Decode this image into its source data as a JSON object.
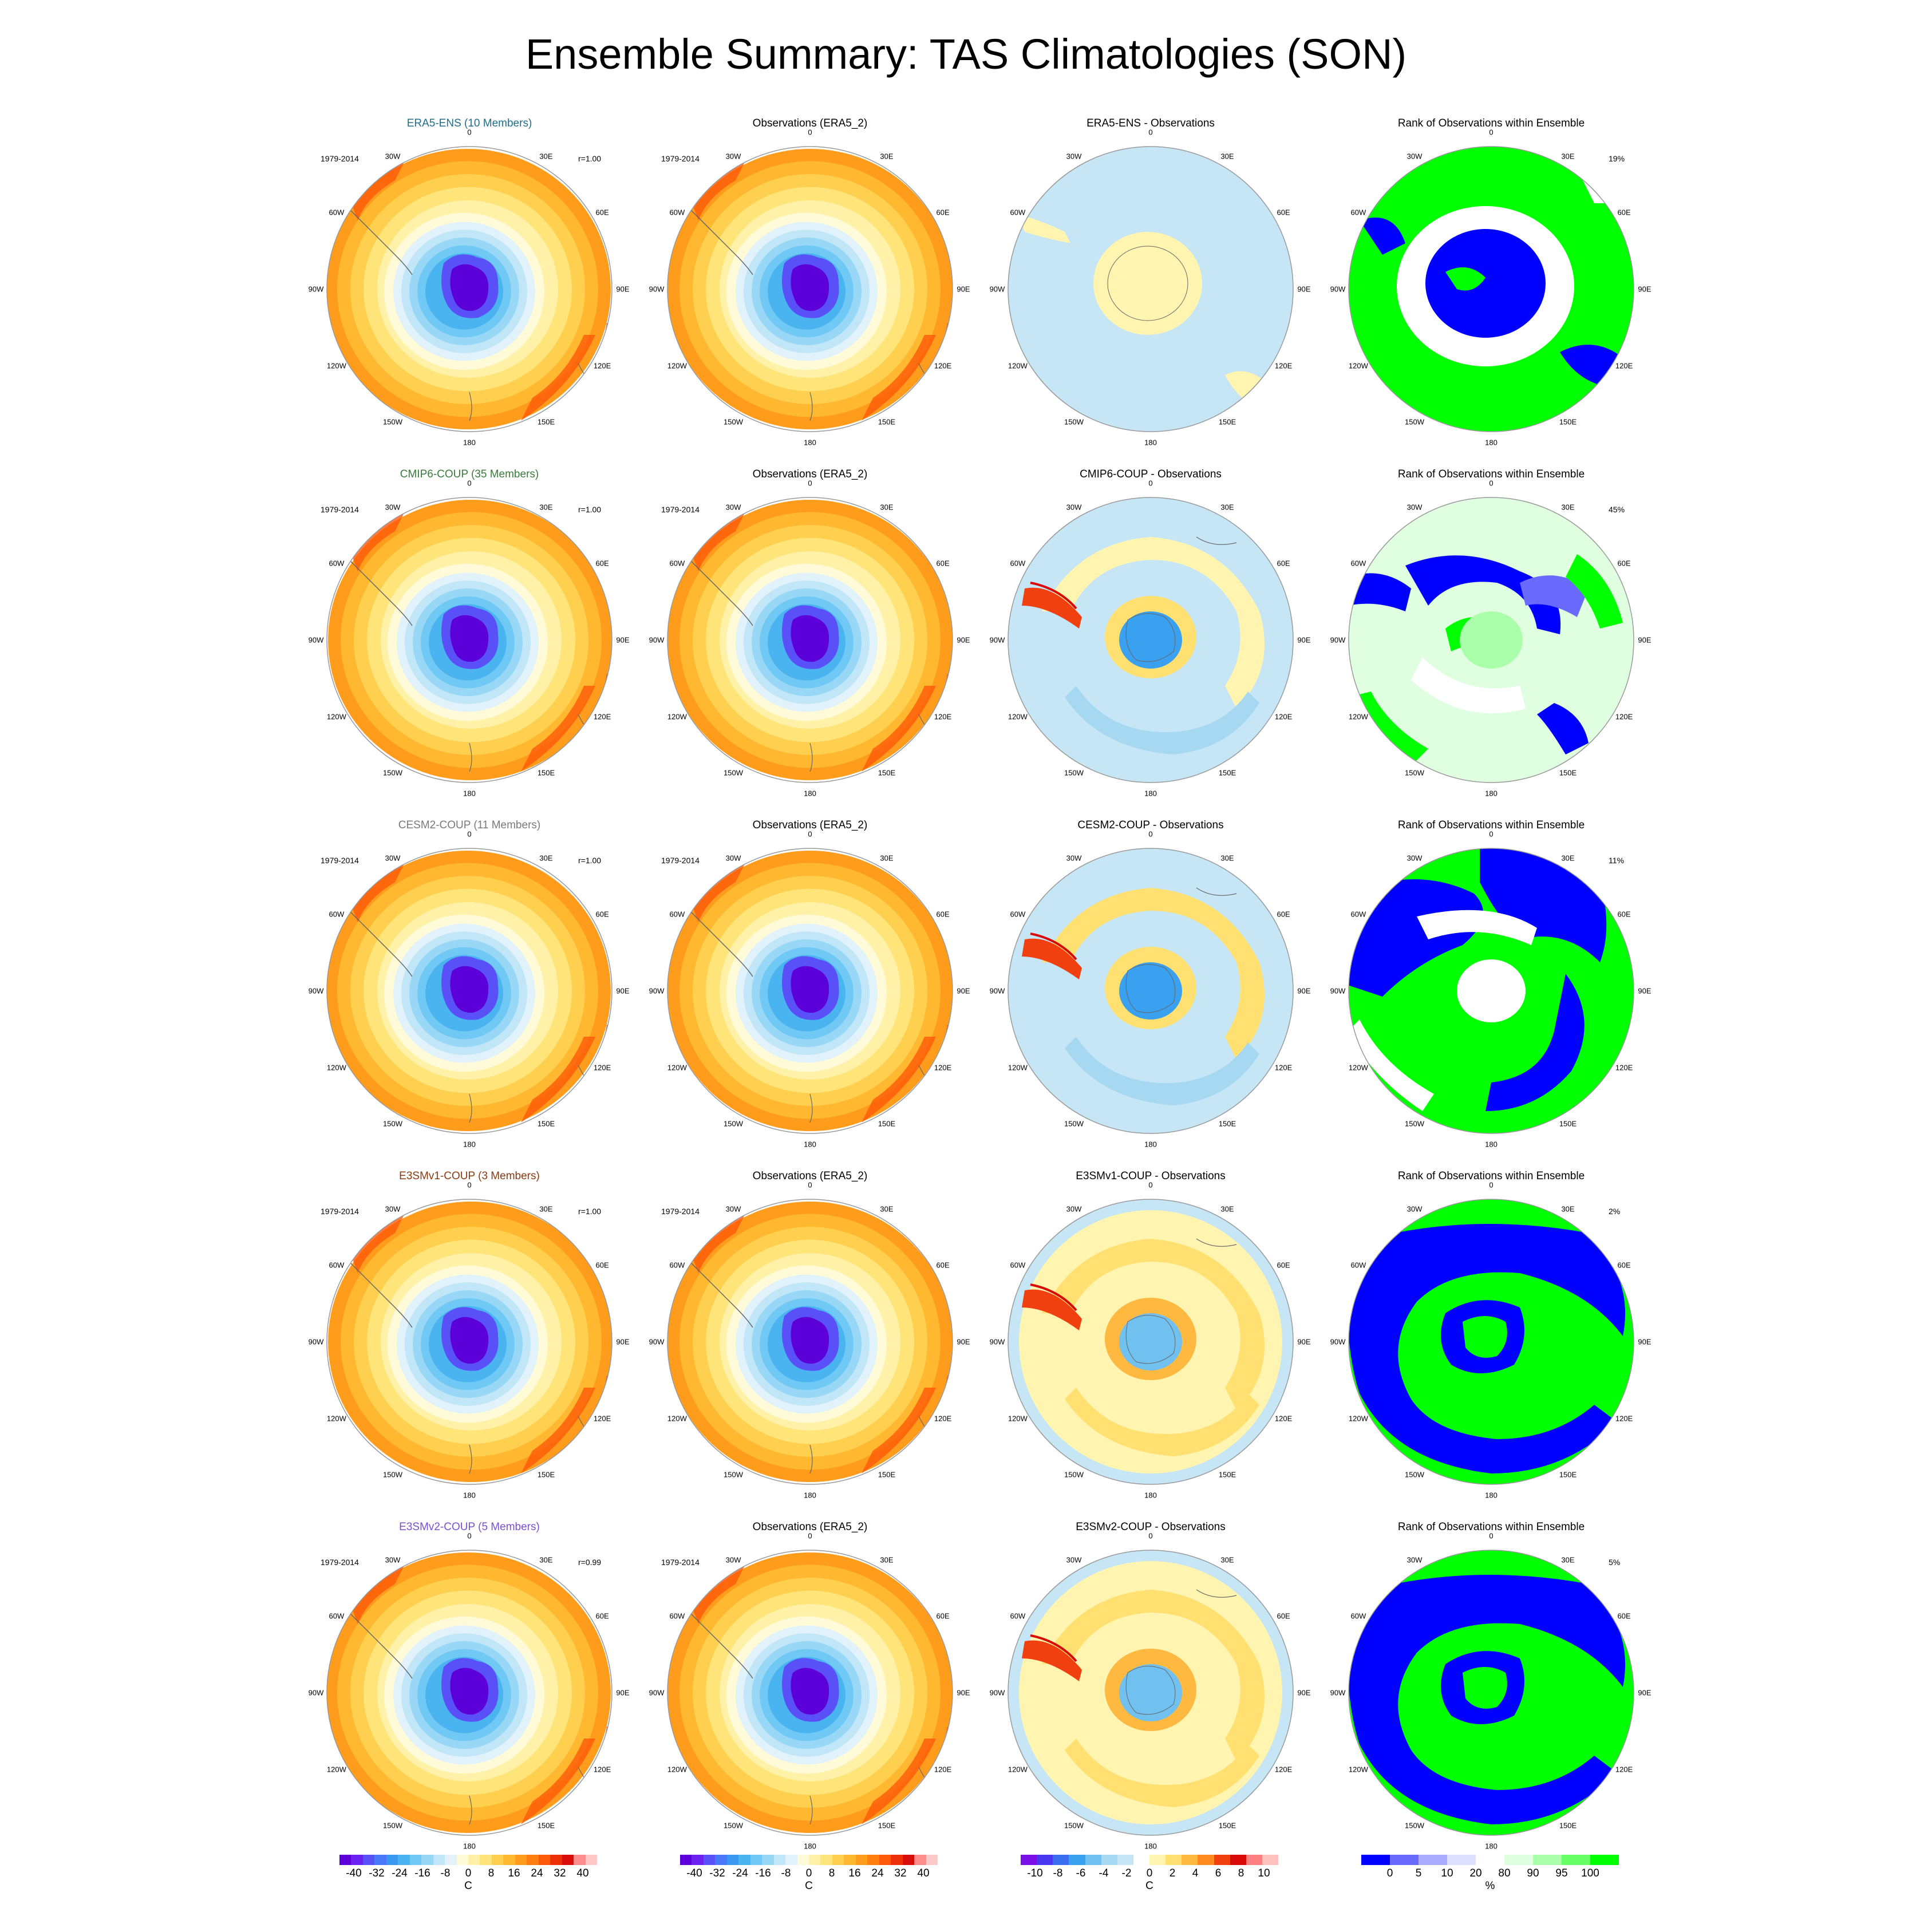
{
  "title": "Ensemble Summary: TAS Climatologies (SON)",
  "period_label": "1979-2014",
  "lon_labels": [
    "0",
    "30E",
    "60E",
    "90E",
    "120E",
    "150E",
    "180",
    "150W",
    "120W",
    "90W",
    "60W",
    "30W"
  ],
  "rows": [
    {
      "model_title": "ERA5-ENS (10 Members)",
      "model_color": "#1f6e8c",
      "r_label": "r=1.00",
      "obs_title": "Observations (ERA5_2)",
      "diff_title": "ERA5-ENS - Observations",
      "rank_title": "Rank of Observations within Ensemble",
      "rank_pct": "19%"
    },
    {
      "model_title": "CMIP6-COUP (35 Members)",
      "model_color": "#3a7a3a",
      "r_label": "r=1.00",
      "obs_title": "Observations (ERA5_2)",
      "diff_title": "CMIP6-COUP - Observations",
      "rank_title": "Rank of Observations within Ensemble",
      "rank_pct": "45%"
    },
    {
      "model_title": "CESM2-COUP (11 Members)",
      "model_color": "#7a7a7a",
      "r_label": "r=1.00",
      "obs_title": "Observations (ERA5_2)",
      "diff_title": "CESM2-COUP - Observations",
      "rank_title": "Rank of Observations within Ensemble",
      "rank_pct": "11%"
    },
    {
      "model_title": "E3SMv1-COUP (3 Members)",
      "model_color": "#8b3a10",
      "r_label": "r=1.00",
      "obs_title": "Observations (ERA5_2)",
      "diff_title": "E3SMv1-COUP - Observations",
      "rank_title": "Rank of Observations within Ensemble",
      "rank_pct": "2%"
    },
    {
      "model_title": "E3SMv2-COUP (5 Members)",
      "model_color": "#7b4fd6",
      "r_label": "r=0.99",
      "obs_title": "Observations (ERA5_2)",
      "diff_title": "E3SMv2-COUP - Observations",
      "rank_title": "Rank of Observations within Ensemble",
      "rank_pct": "5%"
    }
  ],
  "colorbars": [
    {
      "kind": "temp",
      "unit": "C",
      "ticks": [
        "-40",
        "-32",
        "-24",
        "-16",
        "-8",
        "0",
        "8",
        "16",
        "24",
        "32",
        "40"
      ],
      "colors": [
        "#5b00d8",
        "#6a22f0",
        "#5a50f8",
        "#4a78f8",
        "#3a98f0",
        "#4ab4f0",
        "#70c8f4",
        "#98d8f6",
        "#c0e6f8",
        "#e2f2fa",
        "#fffbd8",
        "#fff2a8",
        "#ffe47a",
        "#ffd050",
        "#ffb830",
        "#ff9c1c",
        "#ff7e10",
        "#ff5a0a",
        "#ee3008",
        "#d80c08",
        "#ff8c8c",
        "#ffc8c8"
      ]
    },
    {
      "kind": "temp",
      "unit": "C",
      "ticks": [
        "-40",
        "-32",
        "-24",
        "-16",
        "-8",
        "0",
        "8",
        "16",
        "24",
        "32",
        "40"
      ],
      "colors": [
        "#5b00d8",
        "#6a22f0",
        "#5a50f8",
        "#4a78f8",
        "#3a98f0",
        "#4ab4f0",
        "#70c8f4",
        "#98d8f6",
        "#c0e6f8",
        "#e2f2fa",
        "#fffbd8",
        "#fff2a8",
        "#ffe47a",
        "#ffd050",
        "#ffb830",
        "#ff9c1c",
        "#ff7e10",
        "#ff5a0a",
        "#ee3008",
        "#d80c08",
        "#ff8c8c",
        "#ffc8c8"
      ]
    },
    {
      "kind": "diff",
      "unit": "C",
      "ticks": [
        "-10",
        "-8",
        "-6",
        "-4",
        "-2",
        "0",
        "2",
        "4",
        "6",
        "8",
        "10"
      ],
      "colors": [
        "#7a10e8",
        "#4a38f0",
        "#3a70f0",
        "#3aa0f0",
        "#70c0f0",
        "#a6d8f2",
        "#c6e6f6",
        "#ffffff",
        "#fff4b0",
        "#ffe070",
        "#ffb840",
        "#ff8a20",
        "#f04010",
        "#d80a08",
        "#ff8080",
        "#ffc0c0"
      ]
    },
    {
      "kind": "rank",
      "unit": "%",
      "ticks": [
        "0",
        "5",
        "10",
        "20",
        "80",
        "90",
        "95",
        "100"
      ],
      "colors": [
        "#0000ff",
        "#6a6aff",
        "#aaaaff",
        "#e0e0ff",
        "#ffffff",
        "#e0ffe0",
        "#aaffaa",
        "#66ff66",
        "#00ff00"
      ]
    }
  ]
}
